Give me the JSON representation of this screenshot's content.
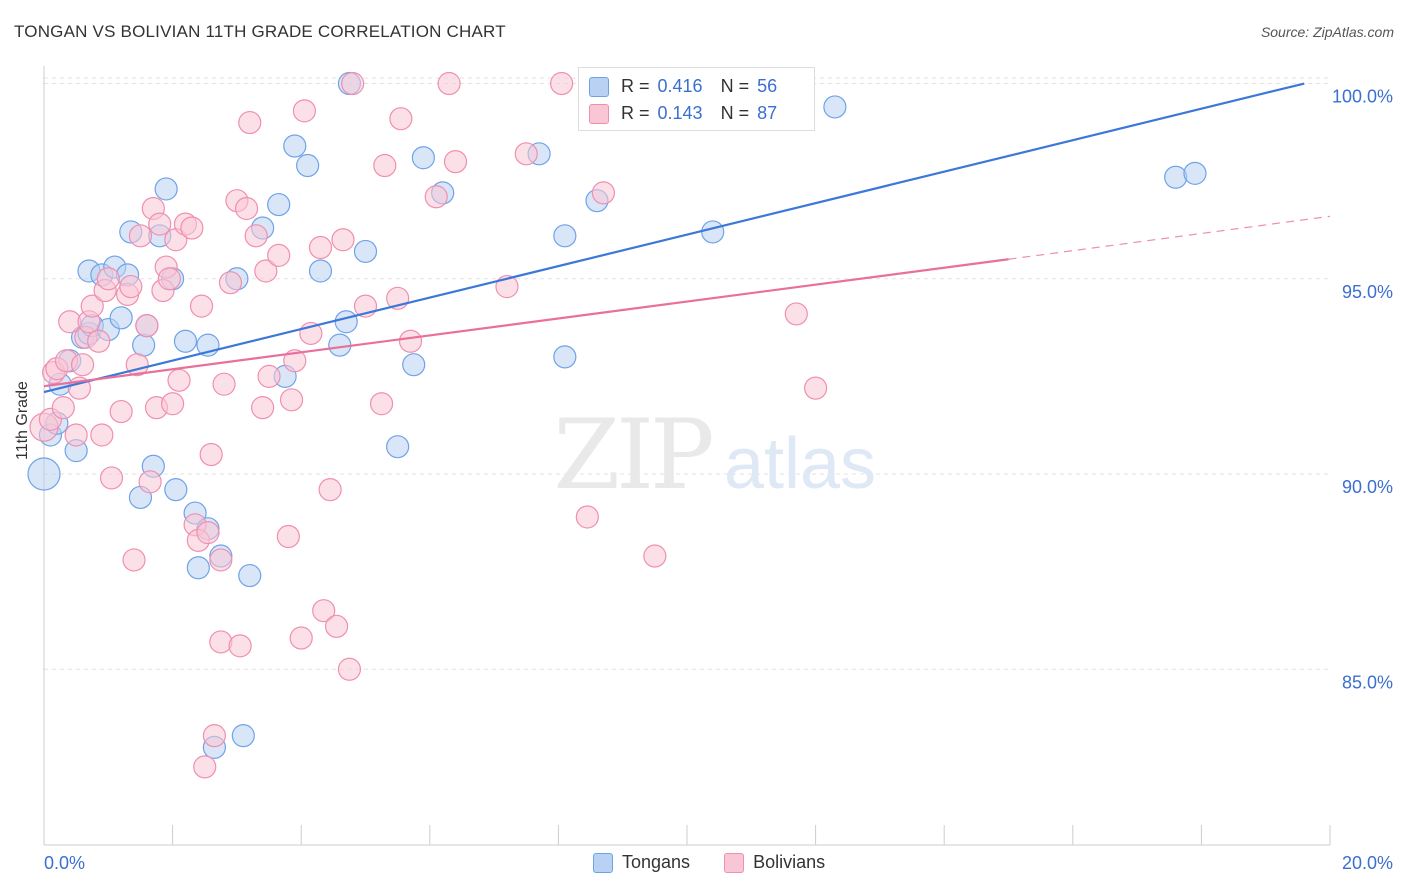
{
  "title": "TONGAN VS BOLIVIAN 11TH GRADE CORRELATION CHART",
  "source": "Source: ZipAtlas.com",
  "watermark": {
    "zip": "ZIP",
    "atlas": "atlas"
  },
  "legend_box": {
    "rows": [
      {
        "r_label": "R =",
        "r_value": "0.416",
        "n_label": "N =",
        "n_value": "56",
        "color": "#6fa3e8",
        "fill": "#b9d2f3"
      },
      {
        "r_label": "R =",
        "r_value": "0.143",
        "n_label": "N =",
        "n_value": "87",
        "color": "#f08fb0",
        "fill": "#f9c6d6"
      }
    ]
  },
  "bottom_legend": [
    {
      "label": "Tongans",
      "fill": "#b9d2f3",
      "color": "#6fa3e8"
    },
    {
      "label": "Bolivians",
      "fill": "#f9c6d6",
      "color": "#f08fb0"
    }
  ],
  "chart_data": {
    "type": "scatter",
    "title": "TONGAN VS BOLIVIAN 11TH GRADE CORRELATION CHART",
    "xlabel": "",
    "ylabel": "11th Grade",
    "xlim": [
      0,
      20
    ],
    "ylim": [
      80.5,
      100.5
    ],
    "x_ticks": [
      {
        "v": 0,
        "label": "0.0%"
      },
      {
        "v": 20,
        "label": "20.0%"
      }
    ],
    "y_ticks": [
      {
        "v": 100,
        "label": "100.0%"
      },
      {
        "v": 95,
        "label": "95.0%"
      },
      {
        "v": 90,
        "label": "90.0%"
      },
      {
        "v": 85,
        "label": "85.0%"
      }
    ],
    "grid": true,
    "series": [
      {
        "name": "Tongans",
        "color": "#3b78d8",
        "fill": "#b9d2f3",
        "stroke": "#6fa3e8",
        "trend": {
          "x1": 0,
          "y1": 92.1,
          "x2": 19.6,
          "y2": 100.0,
          "dashed_to": null
        },
        "points": [
          [
            0.0,
            90.0,
            16
          ],
          [
            0.1,
            91.0,
            11
          ],
          [
            0.2,
            91.3,
            11
          ],
          [
            0.25,
            92.3,
            11
          ],
          [
            0.4,
            92.9,
            11
          ],
          [
            0.5,
            90.6,
            11
          ],
          [
            0.6,
            93.5,
            11
          ],
          [
            0.7,
            93.6,
            11
          ],
          [
            0.75,
            93.8,
            11
          ],
          [
            0.7,
            95.2,
            11
          ],
          [
            0.9,
            95.1,
            11
          ],
          [
            1.0,
            93.7,
            11
          ],
          [
            1.1,
            95.3,
            11
          ],
          [
            1.2,
            94.0,
            11
          ],
          [
            1.3,
            95.1,
            11
          ],
          [
            1.35,
            96.2,
            11
          ],
          [
            1.5,
            89.4,
            11
          ],
          [
            1.55,
            93.3,
            11
          ],
          [
            1.6,
            93.8,
            11
          ],
          [
            1.7,
            90.2,
            11
          ],
          [
            1.8,
            96.1,
            11
          ],
          [
            1.9,
            97.3,
            11
          ],
          [
            2.0,
            95.0,
            11
          ],
          [
            2.05,
            89.6,
            11
          ],
          [
            2.2,
            93.4,
            11
          ],
          [
            2.35,
            89.0,
            11
          ],
          [
            2.4,
            87.6,
            11
          ],
          [
            2.55,
            93.3,
            11
          ],
          [
            2.55,
            88.6,
            11
          ],
          [
            2.65,
            83.0,
            11
          ],
          [
            2.75,
            87.9,
            11
          ],
          [
            3.0,
            95.0,
            11
          ],
          [
            3.1,
            83.3,
            11
          ],
          [
            3.2,
            87.4,
            11
          ],
          [
            3.4,
            96.3,
            11
          ],
          [
            3.65,
            96.9,
            11
          ],
          [
            3.75,
            92.5,
            11
          ],
          [
            3.9,
            98.4,
            11
          ],
          [
            4.1,
            97.9,
            11
          ],
          [
            4.3,
            95.2,
            11
          ],
          [
            4.6,
            93.3,
            11
          ],
          [
            4.7,
            93.9,
            11
          ],
          [
            4.75,
            100.0,
            11
          ],
          [
            5.0,
            95.7,
            11
          ],
          [
            5.5,
            90.7,
            11
          ],
          [
            5.75,
            92.8,
            11
          ],
          [
            5.9,
            98.1,
            11
          ],
          [
            6.2,
            97.2,
            11
          ],
          [
            7.7,
            98.2,
            11
          ],
          [
            8.1,
            93.0,
            11
          ],
          [
            8.1,
            96.1,
            11
          ],
          [
            8.6,
            97.0,
            11
          ],
          [
            10.4,
            96.2,
            11
          ],
          [
            12.3,
            99.4,
            11
          ],
          [
            17.6,
            97.6,
            11
          ],
          [
            17.9,
            97.7,
            11
          ]
        ]
      },
      {
        "name": "Bolivians",
        "color": "#e8709b",
        "fill": "#f9c6d6",
        "stroke": "#f08fb0",
        "trend": {
          "x1": 0,
          "y1": 92.25,
          "x2": 15.0,
          "y2": 95.5,
          "dashed_to": {
            "x": 20.0,
            "y": 96.6
          }
        },
        "points": [
          [
            0.0,
            91.2,
            14
          ],
          [
            0.1,
            91.4,
            11
          ],
          [
            0.15,
            92.6,
            11
          ],
          [
            0.2,
            92.7,
            11
          ],
          [
            0.3,
            91.7,
            11
          ],
          [
            0.35,
            92.9,
            11
          ],
          [
            0.4,
            93.9,
            11
          ],
          [
            0.5,
            91.0,
            11
          ],
          [
            0.55,
            92.2,
            11
          ],
          [
            0.6,
            92.8,
            11
          ],
          [
            0.65,
            93.5,
            11
          ],
          [
            0.7,
            93.9,
            11
          ],
          [
            0.75,
            94.3,
            11
          ],
          [
            0.85,
            93.4,
            11
          ],
          [
            0.9,
            91.0,
            11
          ],
          [
            0.95,
            94.7,
            11
          ],
          [
            1.0,
            95.0,
            11
          ],
          [
            1.05,
            89.9,
            11
          ],
          [
            1.2,
            91.6,
            11
          ],
          [
            1.3,
            94.6,
            11
          ],
          [
            1.35,
            94.8,
            11
          ],
          [
            1.4,
            87.8,
            11
          ],
          [
            1.45,
            92.8,
            11
          ],
          [
            1.5,
            96.1,
            11
          ],
          [
            1.6,
            93.8,
            11
          ],
          [
            1.65,
            89.8,
            11
          ],
          [
            1.7,
            96.8,
            11
          ],
          [
            1.75,
            91.7,
            11
          ],
          [
            1.8,
            96.4,
            11
          ],
          [
            1.85,
            94.7,
            11
          ],
          [
            1.9,
            95.3,
            11
          ],
          [
            1.95,
            95.0,
            11
          ],
          [
            2.0,
            91.8,
            11
          ],
          [
            2.05,
            96.0,
            11
          ],
          [
            2.1,
            92.4,
            11
          ],
          [
            2.2,
            96.4,
            11
          ],
          [
            2.3,
            96.3,
            11
          ],
          [
            2.35,
            88.7,
            11
          ],
          [
            2.4,
            88.3,
            11
          ],
          [
            2.45,
            94.3,
            11
          ],
          [
            2.5,
            82.5,
            11
          ],
          [
            2.55,
            88.5,
            11
          ],
          [
            2.6,
            90.5,
            11
          ],
          [
            2.65,
            83.3,
            11
          ],
          [
            2.75,
            85.7,
            11
          ],
          [
            2.75,
            87.8,
            11
          ],
          [
            2.8,
            92.3,
            11
          ],
          [
            2.9,
            94.9,
            11
          ],
          [
            3.0,
            97.0,
            11
          ],
          [
            3.05,
            85.6,
            11
          ],
          [
            3.15,
            96.8,
            11
          ],
          [
            3.2,
            99.0,
            11
          ],
          [
            3.3,
            96.1,
            11
          ],
          [
            3.4,
            91.7,
            11
          ],
          [
            3.45,
            95.2,
            11
          ],
          [
            3.5,
            92.5,
            11
          ],
          [
            3.65,
            95.6,
            11
          ],
          [
            3.8,
            88.4,
            11
          ],
          [
            3.85,
            91.9,
            11
          ],
          [
            3.9,
            92.9,
            11
          ],
          [
            4.0,
            85.8,
            11
          ],
          [
            4.05,
            99.3,
            11
          ],
          [
            4.15,
            93.6,
            11
          ],
          [
            4.3,
            95.8,
            11
          ],
          [
            4.35,
            86.5,
            11
          ],
          [
            4.45,
            89.6,
            11
          ],
          [
            4.55,
            86.1,
            11
          ],
          [
            4.65,
            96.0,
            11
          ],
          [
            4.75,
            85.0,
            11
          ],
          [
            4.8,
            100.0,
            11
          ],
          [
            5.0,
            94.3,
            11
          ],
          [
            5.25,
            91.8,
            11
          ],
          [
            5.3,
            97.9,
            11
          ],
          [
            5.5,
            94.5,
            11
          ],
          [
            5.55,
            99.1,
            11
          ],
          [
            5.7,
            93.4,
            11
          ],
          [
            6.1,
            97.1,
            11
          ],
          [
            6.3,
            100.0,
            11
          ],
          [
            6.4,
            98.0,
            11
          ],
          [
            7.2,
            94.8,
            11
          ],
          [
            7.5,
            98.2,
            11
          ],
          [
            8.05,
            100.0,
            11
          ],
          [
            8.45,
            88.9,
            11
          ],
          [
            8.7,
            97.2,
            11
          ],
          [
            9.5,
            87.9,
            11
          ],
          [
            11.7,
            94.1,
            11
          ],
          [
            12.0,
            92.2,
            11
          ]
        ]
      }
    ]
  }
}
